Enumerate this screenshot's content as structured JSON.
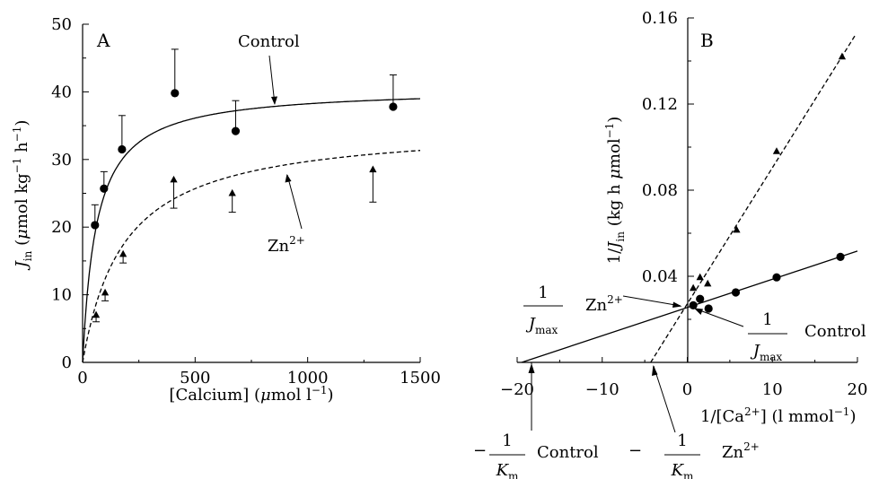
{
  "chart_data": [
    {
      "panel": "A",
      "type": "scatter",
      "xlabel": "[Calcium] (μmol l⁻¹)",
      "ylabel": "J_in (μmol kg⁻¹ h⁻¹)",
      "xlim": [
        0,
        1500
      ],
      "ylim": [
        0,
        50
      ],
      "xticks": [
        "0",
        "500",
        "1000",
        "1500"
      ],
      "yticks": [
        "0",
        "10",
        "20",
        "30",
        "40",
        "50"
      ],
      "series": [
        {
          "name": "Control",
          "marker": "circle",
          "line": "solid",
          "x": [
            55,
            95,
            175,
            410,
            680,
            1380
          ],
          "y": [
            20.3,
            25.7,
            31.5,
            39.8,
            34.2,
            37.8
          ],
          "error_plus": [
            3.0,
            2.5,
            5.0,
            6.5,
            4.5,
            4.7
          ],
          "fit": {
            "model": "Michaelis-Menten",
            "Jmax": 40.6,
            "Km": 62
          }
        },
        {
          "name": "Zn²⁺",
          "marker": "triangle",
          "line": "dashed",
          "x": [
            60,
            100,
            180,
            405,
            665,
            1290
          ],
          "y": [
            7.0,
            10.3,
            16.0,
            27.0,
            25.0,
            28.5
          ],
          "error_minus": [
            1.0,
            1.2,
            1.3,
            4.2,
            2.8,
            4.8
          ],
          "fit": {
            "model": "Michaelis-Menten",
            "Jmax": 35.2,
            "Km": 185
          }
        }
      ]
    },
    {
      "panel": "B",
      "type": "scatter",
      "xlabel": "1/[Ca²⁺] (l mmol⁻¹)",
      "ylabel": "1/J_in (kg h μmol⁻¹)",
      "xlim": [
        -20,
        20
      ],
      "ylim": [
        0,
        0.16
      ],
      "xticks": [
        "−20",
        "−10",
        "0",
        "10",
        "20"
      ],
      "yticks": [
        "0.04",
        "0.08",
        "0.12",
        "0.16"
      ],
      "series": [
        {
          "name": "Control",
          "marker": "circle",
          "line": "solid",
          "x": [
            0.7,
            1.5,
            2.5,
            5.7,
            10.5,
            18.0
          ],
          "y": [
            0.0265,
            0.0295,
            0.025,
            0.0325,
            0.0395,
            0.049
          ],
          "fit": {
            "intercept": 0.0255,
            "slope": 0.00131
          }
        },
        {
          "name": "Zn²⁺",
          "marker": "triangle",
          "line": "dashed",
          "x": [
            0.7,
            1.5,
            2.4,
            5.8,
            10.5,
            18.2
          ],
          "y": [
            0.0345,
            0.0395,
            0.0365,
            0.0615,
            0.098,
            0.142
          ],
          "fit": {
            "intercept": 0.0272,
            "slope": 0.00632
          }
        }
      ]
    }
  ],
  "annotations": {
    "panel_a_letter": "A",
    "panel_b_letter": "B",
    "a_control": "Control",
    "a_zn": "Zn",
    "a_zn_sup": "2+",
    "b_one_jmax_zn": "1",
    "b_jmax_zn_j": "J",
    "b_jmax_zn_sub": "max",
    "b_zn_label": "Zn",
    "b_zn_label_sup": "2+",
    "b_one_jmax_control": "1",
    "b_jmax_control_j": "J",
    "b_jmax_control_sub": "max",
    "b_control_label": "Control",
    "b_km_control_minus": "−",
    "b_km_control_one": "1",
    "b_km_control_k": "K",
    "b_km_control_sub": "m",
    "b_km_control_label": "Control",
    "b_km_zn_minus": "−",
    "b_km_zn_one": "1",
    "b_km_zn_k": "K",
    "b_km_zn_sub": "m",
    "b_km_zn_label": "Zn",
    "b_km_zn_label_sup": "2+"
  },
  "axis_text": {
    "a_xlabel_pre": "[Calcium] (",
    "a_xlabel_mu": "μ",
    "a_xlabel_post": "mol l",
    "a_xlabel_sup": "−1",
    "a_xlabel_end": ")",
    "a_ylabel_j": "J",
    "a_ylabel_sub": "in",
    "a_ylabel_open": " (",
    "a_ylabel_mu": "μ",
    "a_ylabel_mid": "mol kg",
    "a_ylabel_sup1": "−1",
    "a_ylabel_h": " h",
    "a_ylabel_sup2": "−1",
    "a_ylabel_close": ")",
    "b_xlabel_pre": "1/[Ca",
    "b_xlabel_sup": "2+",
    "b_xlabel_mid": "] (l mmol",
    "b_xlabel_sup2": "−1",
    "b_xlabel_end": ")",
    "b_ylabel_pre": "1/",
    "b_ylabel_j": "J",
    "b_ylabel_sub": "in",
    "b_ylabel_mid": " (kg h ",
    "b_ylabel_mu": "μ",
    "b_ylabel_post": "mol",
    "b_ylabel_sup": "−1",
    "b_ylabel_end": ")"
  }
}
